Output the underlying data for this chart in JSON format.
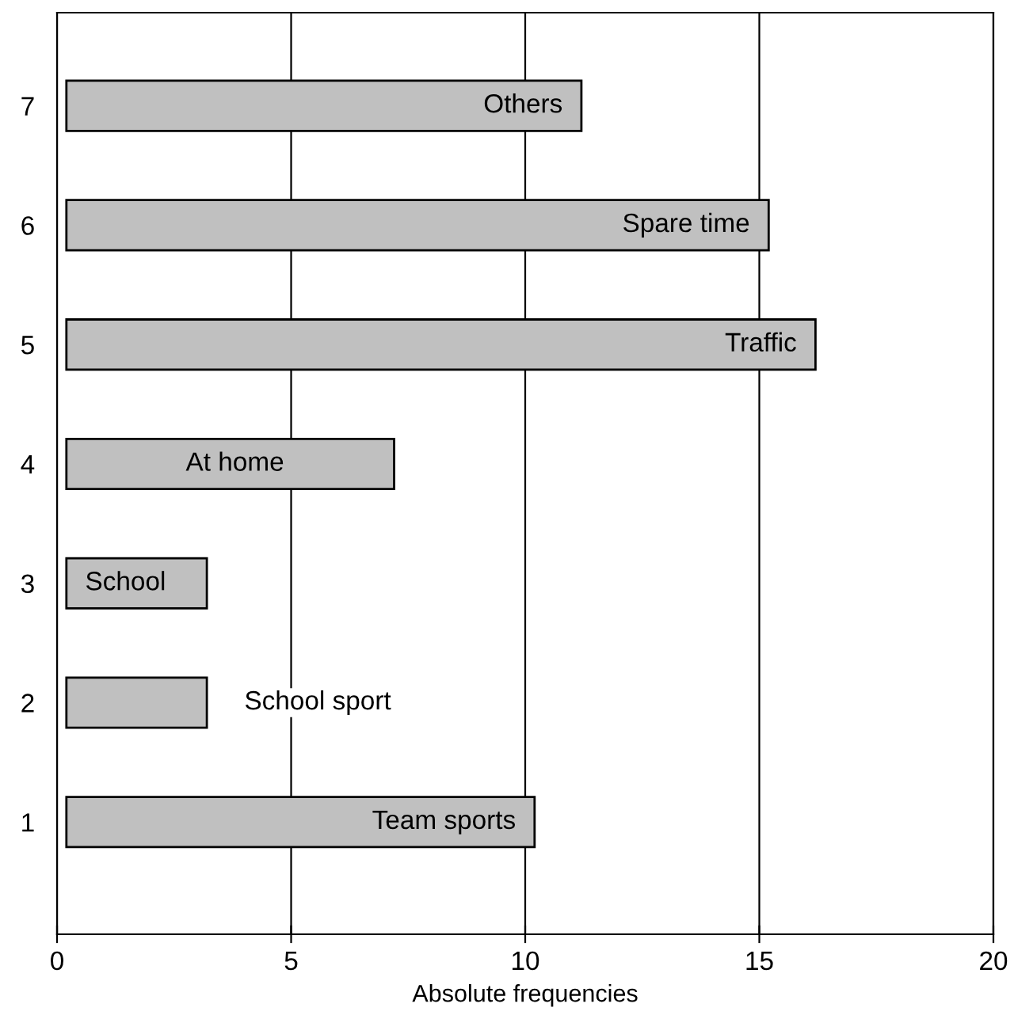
{
  "chart_data": {
    "type": "bar",
    "orientation": "horizontal",
    "xlabel": "Absolute frequencies",
    "categories": [
      "7",
      "6",
      "5",
      "4",
      "3",
      "2",
      "1"
    ],
    "values": [
      11,
      15,
      16,
      7,
      3,
      3,
      10
    ],
    "base": [
      0.2,
      0.2,
      0.2,
      0.2,
      0.2,
      0.2,
      0.2
    ],
    "color": "#c0c0c0",
    "xlim": [
      0,
      20
    ],
    "xticks": [
      0,
      5,
      10,
      15,
      20
    ],
    "grid": "x",
    "annotations": [
      "Others",
      "Spare time",
      "Traffic",
      "At home",
      "School",
      "School sport",
      "Team sports"
    ]
  }
}
